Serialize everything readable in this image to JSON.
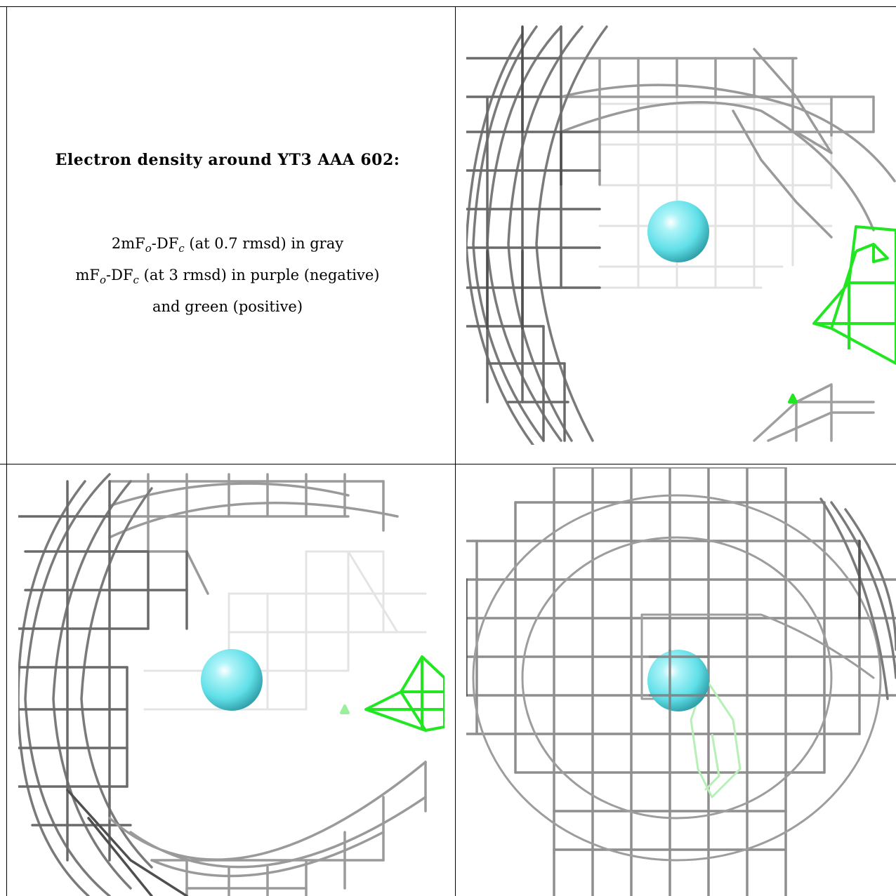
{
  "caption": {
    "title": "Electron density around YT3 AAA 602:",
    "line1": "2mFₒ-DFᴄ (at 0.7 rmsd) in gray",
    "line2": "mFₒ-DFᴄ (at 3 rmsd) in purple (negative)",
    "line3": "and green (positive)"
  },
  "colors": {
    "mesh_gray": "#8a8a8a",
    "mesh_dark": "#555555",
    "mesh_light": "#d4d4d4",
    "mesh_green": "#22e622",
    "ion_cyan": "#6ee6ee"
  },
  "panels": [
    {
      "name": "view-top-right"
    },
    {
      "name": "view-bottom-left"
    },
    {
      "name": "view-bottom-right"
    }
  ]
}
